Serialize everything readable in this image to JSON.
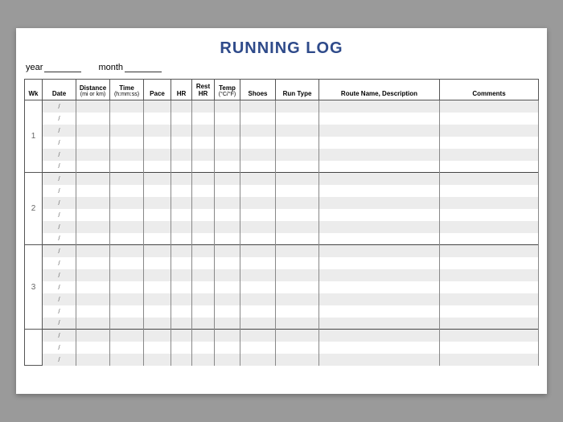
{
  "title": "RUNNING LOG",
  "meta": {
    "year_label": "year",
    "month_label": "month"
  },
  "columns": {
    "wk": "Wk",
    "date": "Date",
    "distance": "Distance",
    "distance_sub": "(mi or km)",
    "time": "Time",
    "time_sub": "(h:mm:ss)",
    "pace": "Pace",
    "hr": "HR",
    "rest_hr": "Rest HR",
    "temp": "Temp",
    "temp_sub": "(°C/°F)",
    "shoes": "Shoes",
    "run_type": "Run Type",
    "route": "Route Name, Description",
    "comments": "Comments"
  },
  "weeks": [
    {
      "label": "1",
      "rows": 6
    },
    {
      "label": "2",
      "rows": 6
    },
    {
      "label": "3",
      "rows": 7
    },
    {
      "label": "",
      "rows": 3
    }
  ],
  "date_placeholder": "/",
  "colors": {
    "title": "#2e4a8a",
    "alt_row": "#ececec",
    "border": "#555555",
    "page_bg": "#ffffff",
    "outer_bg": "#9a9a9a"
  }
}
